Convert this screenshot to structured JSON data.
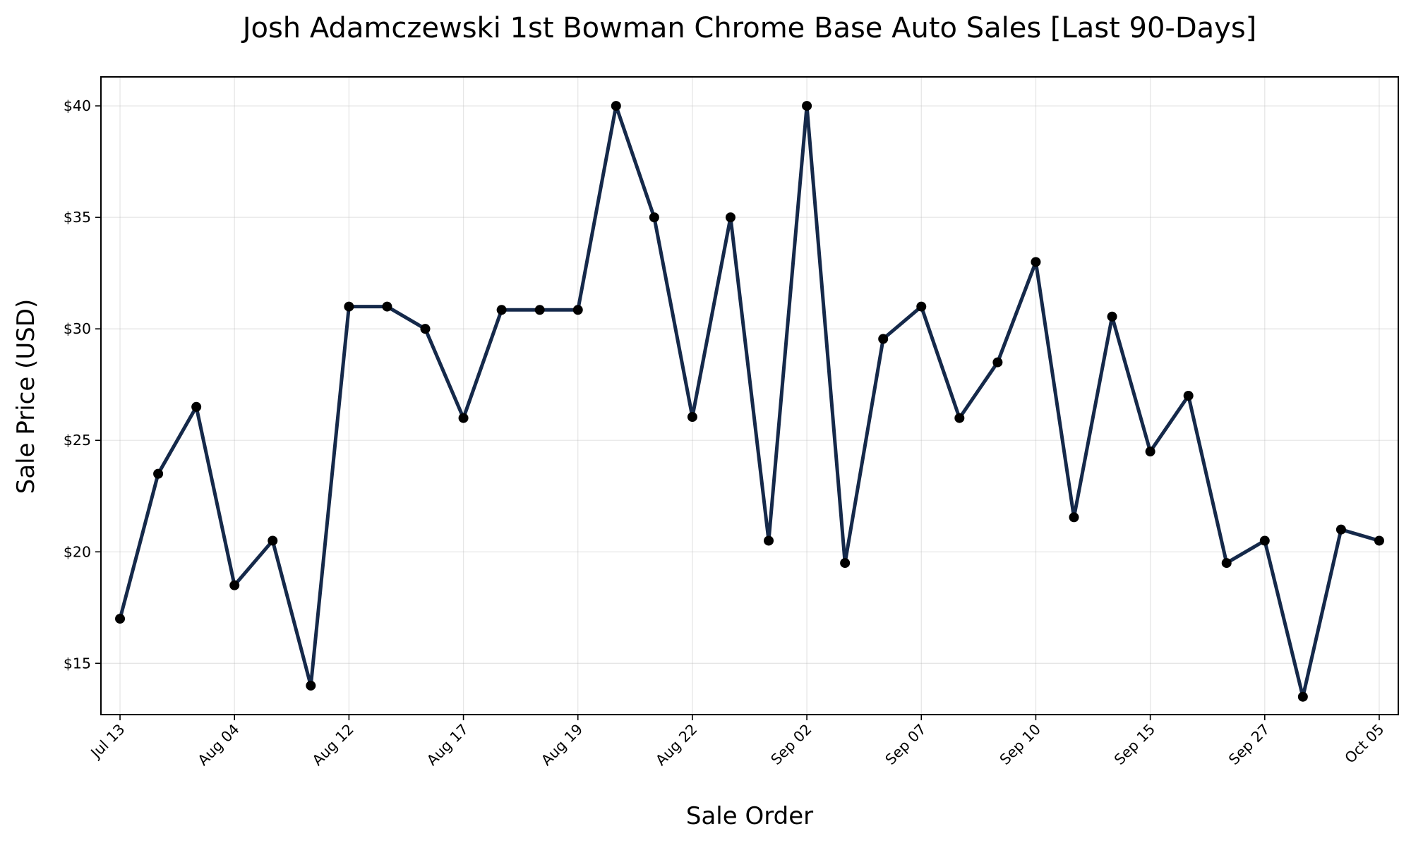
{
  "chart_data": {
    "type": "line",
    "title": "Josh Adamczewski 1st Bowman Chrome Base Auto Sales [Last 90-Days]",
    "xlabel": "Sale Order",
    "ylabel": "Sale Price (USD)",
    "x_tick_labels": [
      {
        "index": 0,
        "label": "Jul 13"
      },
      {
        "index": 3,
        "label": "Aug 04"
      },
      {
        "index": 6,
        "label": "Aug 12"
      },
      {
        "index": 9,
        "label": "Aug 17"
      },
      {
        "index": 12,
        "label": "Aug 19"
      },
      {
        "index": 15,
        "label": "Aug 22"
      },
      {
        "index": 18,
        "label": "Sep 02"
      },
      {
        "index": 21,
        "label": "Sep 07"
      },
      {
        "index": 24,
        "label": "Sep 10"
      },
      {
        "index": 27,
        "label": "Sep 15"
      },
      {
        "index": 30,
        "label": "Sep 27"
      },
      {
        "index": 33,
        "label": "Oct 05"
      }
    ],
    "y_ticks": [
      15,
      20,
      25,
      30,
      35,
      40
    ],
    "y_tick_labels": [
      "$15",
      "$20",
      "$25",
      "$30",
      "$35",
      "$40"
    ],
    "xlim": [
      -0.5,
      33.5
    ],
    "ylim": [
      12.7,
      41.3
    ],
    "grid": true,
    "series": [
      {
        "x": [
          0,
          1,
          2,
          3,
          4,
          5,
          6,
          7,
          8,
          9,
          10,
          11,
          12,
          13,
          14,
          15,
          16,
          17,
          18,
          19,
          20,
          21,
          22,
          23,
          24,
          25,
          26,
          27,
          28,
          29,
          30,
          31,
          32,
          33
        ],
        "values": [
          17,
          23.5,
          26.5,
          18.5,
          20.5,
          14,
          31,
          31,
          30,
          26,
          30.85,
          30.85,
          30.85,
          40,
          35,
          26.05,
          35,
          20.5,
          40,
          19.5,
          29.55,
          31,
          26,
          28.5,
          33,
          21.55,
          30.55,
          24.5,
          27,
          19.5,
          20.5,
          13.5,
          21,
          20.5
        ]
      }
    ],
    "colors": {
      "line": "#15294a",
      "marker": "#000000"
    }
  }
}
